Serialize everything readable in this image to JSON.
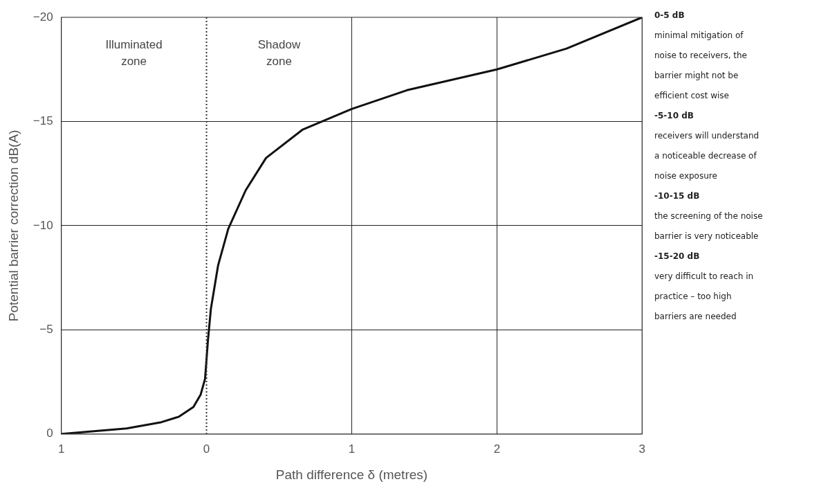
{
  "chart_data": {
    "type": "line",
    "xlabel": "Path difference δ (metres)",
    "ylabel": "Potential barrier correction dB(A)",
    "xlim": [
      -1,
      3
    ],
    "xticks": [
      {
        "value": -1,
        "label": "1"
      },
      0,
      1,
      2,
      3
    ],
    "ylim": [
      0,
      -20
    ],
    "yticks": [
      {
        "value": 0,
        "label": "0"
      },
      {
        "value": -5,
        "label": "−5"
      },
      {
        "value": -10,
        "label": "−10"
      },
      {
        "value": -15,
        "label": "−15"
      },
      {
        "value": -20,
        "label": "−20"
      }
    ],
    "grid": true,
    "legend": false,
    "marker": "none",
    "line_style": "solid",
    "series": [
      {
        "color": "#111111",
        "x": [
          -1,
          -0.55,
          -0.31,
          -0.19,
          -0.09,
          -0.04,
          -0.01,
          0.01,
          0.03,
          0.08,
          0.15,
          0.27,
          0.41,
          0.66,
          1,
          1.38,
          2,
          2.48,
          3
        ],
        "values": [
          0,
          -0.27,
          -0.57,
          -0.83,
          -1.3,
          -1.9,
          -2.65,
          -4.5,
          -6,
          -8.1,
          -9.85,
          -11.7,
          -13.25,
          -14.6,
          -15.6,
          -16.5,
          -17.5,
          -18.5,
          -20
        ]
      }
    ],
    "ref_lines": [
      {
        "axis": "x",
        "value": 0,
        "label": null,
        "line_style": "dotted",
        "color": "#333333"
      }
    ],
    "annotations": [
      "Illuminated\nzone",
      "Shadow\nzone",
      "0-5 dB",
      "minimal mitigation of noise to receivers, the barrier might not be efficient cost wise",
      "-5-10 dB",
      "receivers will understand a noticeable decrease of noise exposure",
      "-10-15 dB",
      "the screening of the noise barrier is very noticeable",
      "-15-20 dB",
      "very difficult to reach in practice – too high barriers are needed"
    ]
  }
}
